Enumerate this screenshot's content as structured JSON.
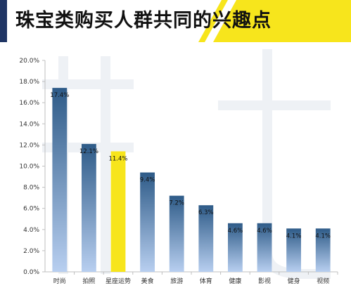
{
  "header": {
    "title": "珠宝类购买人群共同的兴趣点"
  },
  "colors": {
    "accent": "#f7e51c",
    "navy": "#1f3564",
    "highlight_bar": "#f7e51c",
    "bar_gradient": [
      "#2e5b88",
      "#b8cff0"
    ]
  },
  "chart_data": {
    "type": "bar",
    "title": "珠宝类购买人群共同的兴趣点",
    "xlabel": "",
    "ylabel": "",
    "categories": [
      "时尚",
      "拍照",
      "星座运势",
      "美食",
      "旅游",
      "体育",
      "健康",
      "影视",
      "健身",
      "视频"
    ],
    "values": [
      17.4,
      12.1,
      11.4,
      9.4,
      7.2,
      6.3,
      4.6,
      4.6,
      4.1,
      4.1
    ],
    "data_labels": [
      "17.4%",
      "12.1%",
      "11.4%",
      "9.4%",
      "7.2%",
      "6.3%",
      "4.6%",
      "4.6%",
      "4.1%",
      "4.1%"
    ],
    "highlight_index": 2,
    "ylim": [
      0,
      20
    ],
    "yticks": [
      0,
      2,
      4,
      6,
      8,
      10,
      12,
      14,
      16,
      18,
      20
    ],
    "ytick_labels": [
      "0.0%",
      "2.0%",
      "4.0%",
      "6.0%",
      "8.0%",
      "10.0%",
      "12.0%",
      "14.0%",
      "16.0%",
      "18.0%",
      "20.0%"
    ],
    "grid": false,
    "legend": "none"
  }
}
